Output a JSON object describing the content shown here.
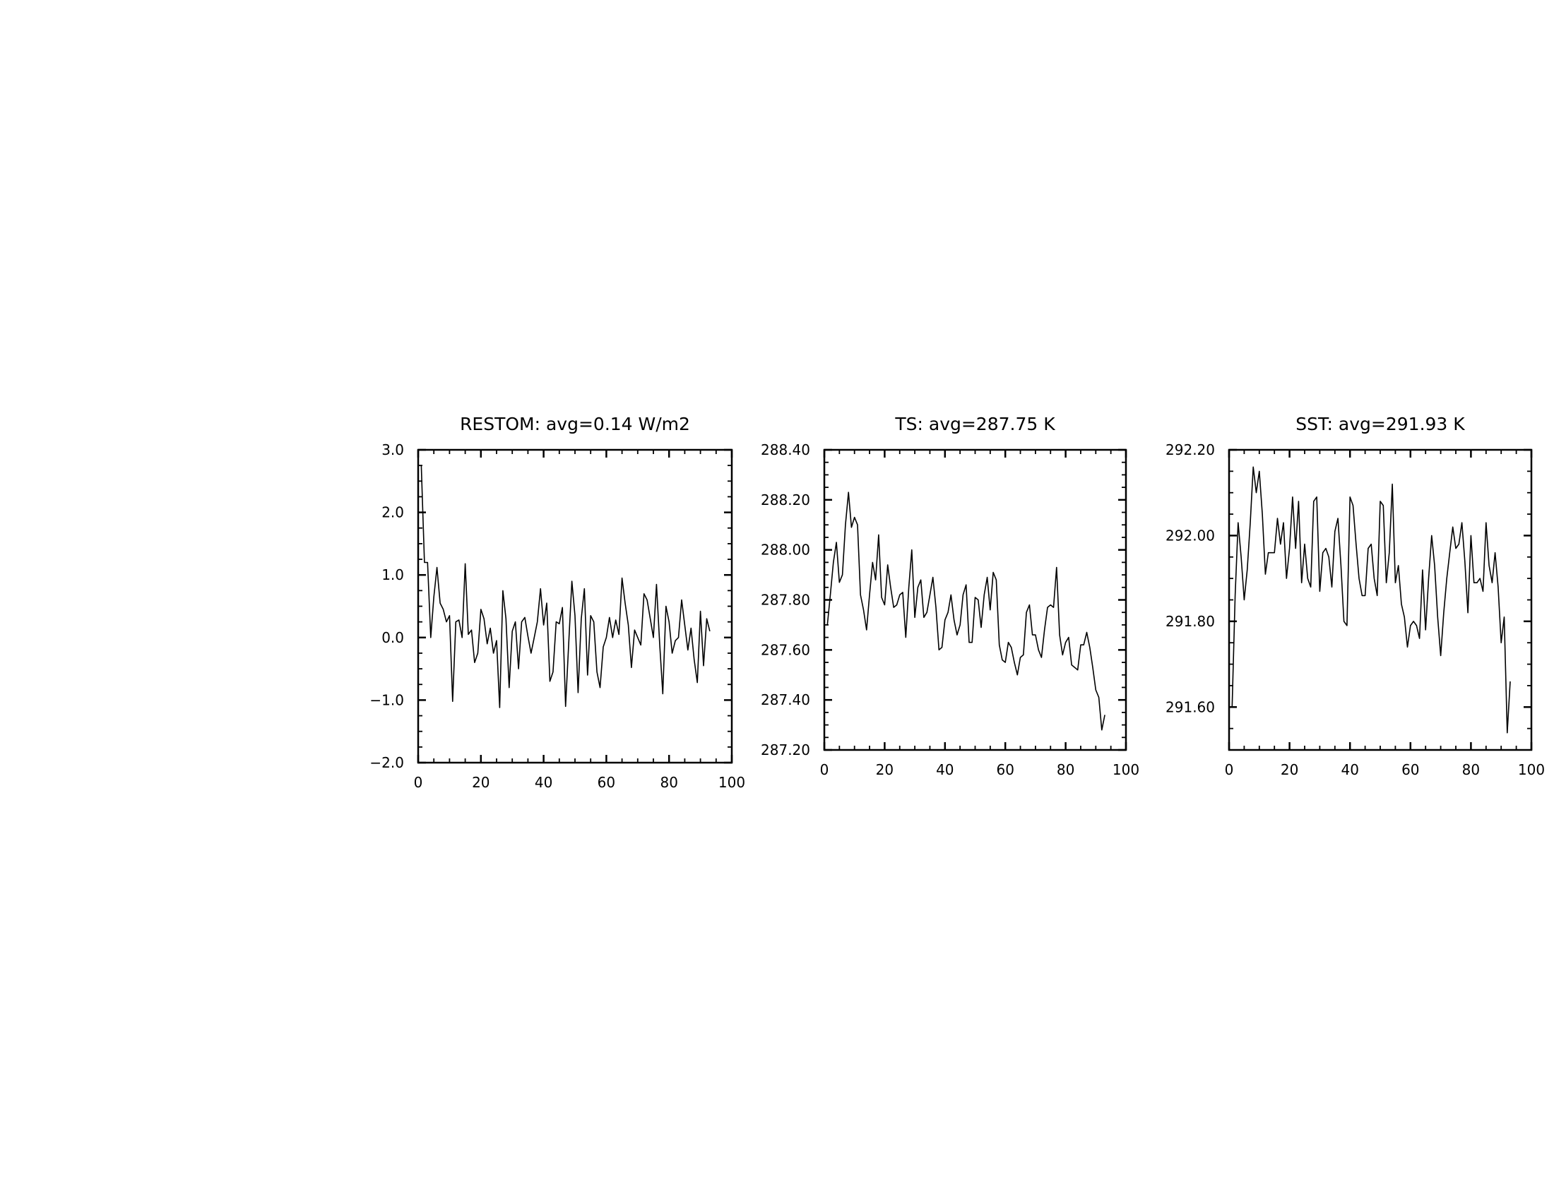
{
  "chart_data": [
    {
      "type": "line",
      "title": "RESTOM: avg=0.14 W/m2",
      "xlim": [
        0,
        100
      ],
      "ylim": [
        -2.0,
        3.0
      ],
      "xticks": [
        0,
        20,
        40,
        60,
        80,
        100
      ],
      "xtick_labels": [
        "0",
        "20",
        "40",
        "60",
        "80",
        "100"
      ],
      "yticks": [
        -2.0,
        -1.0,
        0.0,
        1.0,
        2.0,
        3.0
      ],
      "ytick_labels": [
        "−2.0",
        "−1.0",
        "0.0",
        "1.0",
        "2.0",
        "3.0"
      ],
      "grid": false,
      "x": [
        1,
        2,
        3,
        4,
        5,
        6,
        7,
        8,
        9,
        10,
        11,
        12,
        13,
        14,
        15,
        16,
        17,
        18,
        19,
        20,
        21,
        22,
        23,
        24,
        25,
        26,
        27,
        28,
        29,
        30,
        31,
        32,
        33,
        34,
        35,
        36,
        37,
        38,
        39,
        40,
        41,
        42,
        43,
        44,
        45,
        46,
        47,
        48,
        49,
        50,
        51,
        52,
        53,
        54,
        55,
        56,
        57,
        58,
        59,
        60,
        61,
        62,
        63,
        64,
        65,
        66,
        67,
        68,
        69,
        70,
        71,
        72,
        73,
        74,
        75,
        76,
        77,
        78,
        79,
        80,
        81,
        82,
        83,
        84,
        85,
        86,
        87,
        88,
        89,
        90,
        91,
        92,
        93
      ],
      "series": [
        {
          "values": [
            2.75,
            1.2,
            1.2,
            0.0,
            0.65,
            1.12,
            0.55,
            0.45,
            0.25,
            0.35,
            -1.02,
            0.25,
            0.28,
            0.0,
            1.18,
            0.05,
            0.12,
            -0.4,
            -0.25,
            0.45,
            0.3,
            -0.1,
            0.15,
            -0.25,
            -0.05,
            -1.12,
            0.75,
            0.3,
            -0.8,
            0.1,
            0.25,
            -0.5,
            0.25,
            0.32,
            0.02,
            -0.25,
            0.0,
            0.25,
            0.78,
            0.2,
            0.55,
            -0.7,
            -0.55,
            0.25,
            0.22,
            0.48,
            -1.1,
            -0.1,
            0.9,
            0.35,
            -0.88,
            0.3,
            0.78,
            -0.6,
            0.35,
            0.25,
            -0.55,
            -0.8,
            -0.15,
            0.0,
            0.32,
            0.0,
            0.28,
            0.05,
            0.95,
            0.55,
            0.2,
            -0.48,
            0.12,
            0.0,
            -0.12,
            0.7,
            0.6,
            0.3,
            0.0,
            0.85,
            -0.1,
            -0.9,
            0.5,
            0.25,
            -0.25,
            -0.05,
            0.0,
            0.6,
            0.2,
            -0.2,
            0.15,
            -0.35,
            -0.72,
            0.42,
            -0.45,
            0.3,
            0.1
          ]
        }
      ]
    },
    {
      "type": "line",
      "title": "TS: avg=287.75 K",
      "xlim": [
        0,
        100
      ],
      "ylim": [
        287.2,
        288.4
      ],
      "xticks": [
        0,
        20,
        40,
        60,
        80,
        100
      ],
      "xtick_labels": [
        "0",
        "20",
        "40",
        "60",
        "80",
        "100"
      ],
      "yticks": [
        287.2,
        287.4,
        287.6,
        287.8,
        288.0,
        288.2,
        288.4
      ],
      "ytick_labels": [
        "287.20",
        "287.40",
        "287.60",
        "287.80",
        "288.00",
        "288.20",
        "288.40"
      ],
      "grid": false,
      "x": [
        1,
        2,
        3,
        4,
        5,
        6,
        7,
        8,
        9,
        10,
        11,
        12,
        13,
        14,
        15,
        16,
        17,
        18,
        19,
        20,
        21,
        22,
        23,
        24,
        25,
        26,
        27,
        28,
        29,
        30,
        31,
        32,
        33,
        34,
        35,
        36,
        37,
        38,
        39,
        40,
        41,
        42,
        43,
        44,
        45,
        46,
        47,
        48,
        49,
        50,
        51,
        52,
        53,
        54,
        55,
        56,
        57,
        58,
        59,
        60,
        61,
        62,
        63,
        64,
        65,
        66,
        67,
        68,
        69,
        70,
        71,
        72,
        73,
        74,
        75,
        76,
        77,
        78,
        79,
        80,
        81,
        82,
        83,
        84,
        85,
        86,
        87,
        88,
        89,
        90,
        91,
        92,
        93
      ],
      "series": [
        {
          "values": [
            287.7,
            287.82,
            287.95,
            288.03,
            287.87,
            287.9,
            288.1,
            288.23,
            288.09,
            288.13,
            288.1,
            287.82,
            287.76,
            287.68,
            287.82,
            287.95,
            287.88,
            288.06,
            287.81,
            287.78,
            287.94,
            287.85,
            287.77,
            287.78,
            287.82,
            287.83,
            287.65,
            287.85,
            288.0,
            287.73,
            287.85,
            287.88,
            287.73,
            287.75,
            287.82,
            287.89,
            287.77,
            287.6,
            287.61,
            287.72,
            287.75,
            287.82,
            287.72,
            287.66,
            287.7,
            287.82,
            287.86,
            287.63,
            287.63,
            287.81,
            287.8,
            287.69,
            287.82,
            287.89,
            287.76,
            287.91,
            287.88,
            287.62,
            287.56,
            287.55,
            287.63,
            287.61,
            287.55,
            287.5,
            287.57,
            287.58,
            287.75,
            287.78,
            287.66,
            287.66,
            287.6,
            287.57,
            287.68,
            287.77,
            287.78,
            287.77,
            287.93,
            287.66,
            287.58,
            287.63,
            287.65,
            287.54,
            287.53,
            287.52,
            287.62,
            287.62,
            287.67,
            287.61,
            287.53,
            287.44,
            287.41,
            287.28,
            287.34
          ]
        }
      ]
    },
    {
      "type": "line",
      "title": "SST: avg=291.93 K",
      "xlim": [
        0,
        100
      ],
      "ylim": [
        291.5,
        292.2
      ],
      "xticks": [
        0,
        20,
        40,
        60,
        80,
        100
      ],
      "xtick_labels": [
        "0",
        "20",
        "40",
        "60",
        "80",
        "100"
      ],
      "yticks": [
        291.6,
        291.8,
        292.0,
        292.2
      ],
      "ytick_labels": [
        "291.60",
        "291.80",
        "292.00",
        "292.20"
      ],
      "grid": false,
      "x": [
        1,
        2,
        3,
        4,
        5,
        6,
        7,
        8,
        9,
        10,
        11,
        12,
        13,
        14,
        15,
        16,
        17,
        18,
        19,
        20,
        21,
        22,
        23,
        24,
        25,
        26,
        27,
        28,
        29,
        30,
        31,
        32,
        33,
        34,
        35,
        36,
        37,
        38,
        39,
        40,
        41,
        42,
        43,
        44,
        45,
        46,
        47,
        48,
        49,
        50,
        51,
        52,
        53,
        54,
        55,
        56,
        57,
        58,
        59,
        60,
        61,
        62,
        63,
        64,
        65,
        66,
        67,
        68,
        69,
        70,
        71,
        72,
        73,
        74,
        75,
        76,
        77,
        78,
        79,
        80,
        81,
        82,
        83,
        84,
        85,
        86,
        87,
        88,
        89,
        90,
        91,
        92,
        93
      ],
      "series": [
        {
          "values": [
            291.6,
            291.86,
            292.03,
            291.95,
            291.85,
            291.92,
            292.03,
            292.16,
            292.1,
            292.15,
            292.05,
            291.91,
            291.96,
            291.96,
            291.96,
            292.04,
            291.98,
            292.03,
            291.9,
            291.97,
            292.09,
            291.97,
            292.08,
            291.89,
            291.98,
            291.9,
            291.88,
            292.08,
            292.09,
            291.87,
            291.96,
            291.97,
            291.95,
            291.88,
            292.01,
            292.04,
            291.93,
            291.8,
            291.79,
            292.09,
            292.07,
            291.98,
            291.9,
            291.86,
            291.86,
            291.97,
            291.98,
            291.9,
            291.86,
            292.08,
            292.07,
            291.89,
            291.96,
            292.12,
            291.89,
            291.93,
            291.84,
            291.81,
            291.74,
            291.79,
            291.8,
            291.79,
            291.76,
            291.92,
            291.78,
            291.9,
            292.0,
            291.93,
            291.81,
            291.72,
            291.82,
            291.9,
            291.96,
            292.02,
            291.97,
            291.98,
            292.03,
            291.94,
            291.82,
            292.0,
            291.89,
            291.89,
            291.9,
            291.87,
            292.03,
            291.93,
            291.89,
            291.96,
            291.88,
            291.75,
            291.81,
            291.54,
            291.66
          ]
        }
      ]
    }
  ]
}
